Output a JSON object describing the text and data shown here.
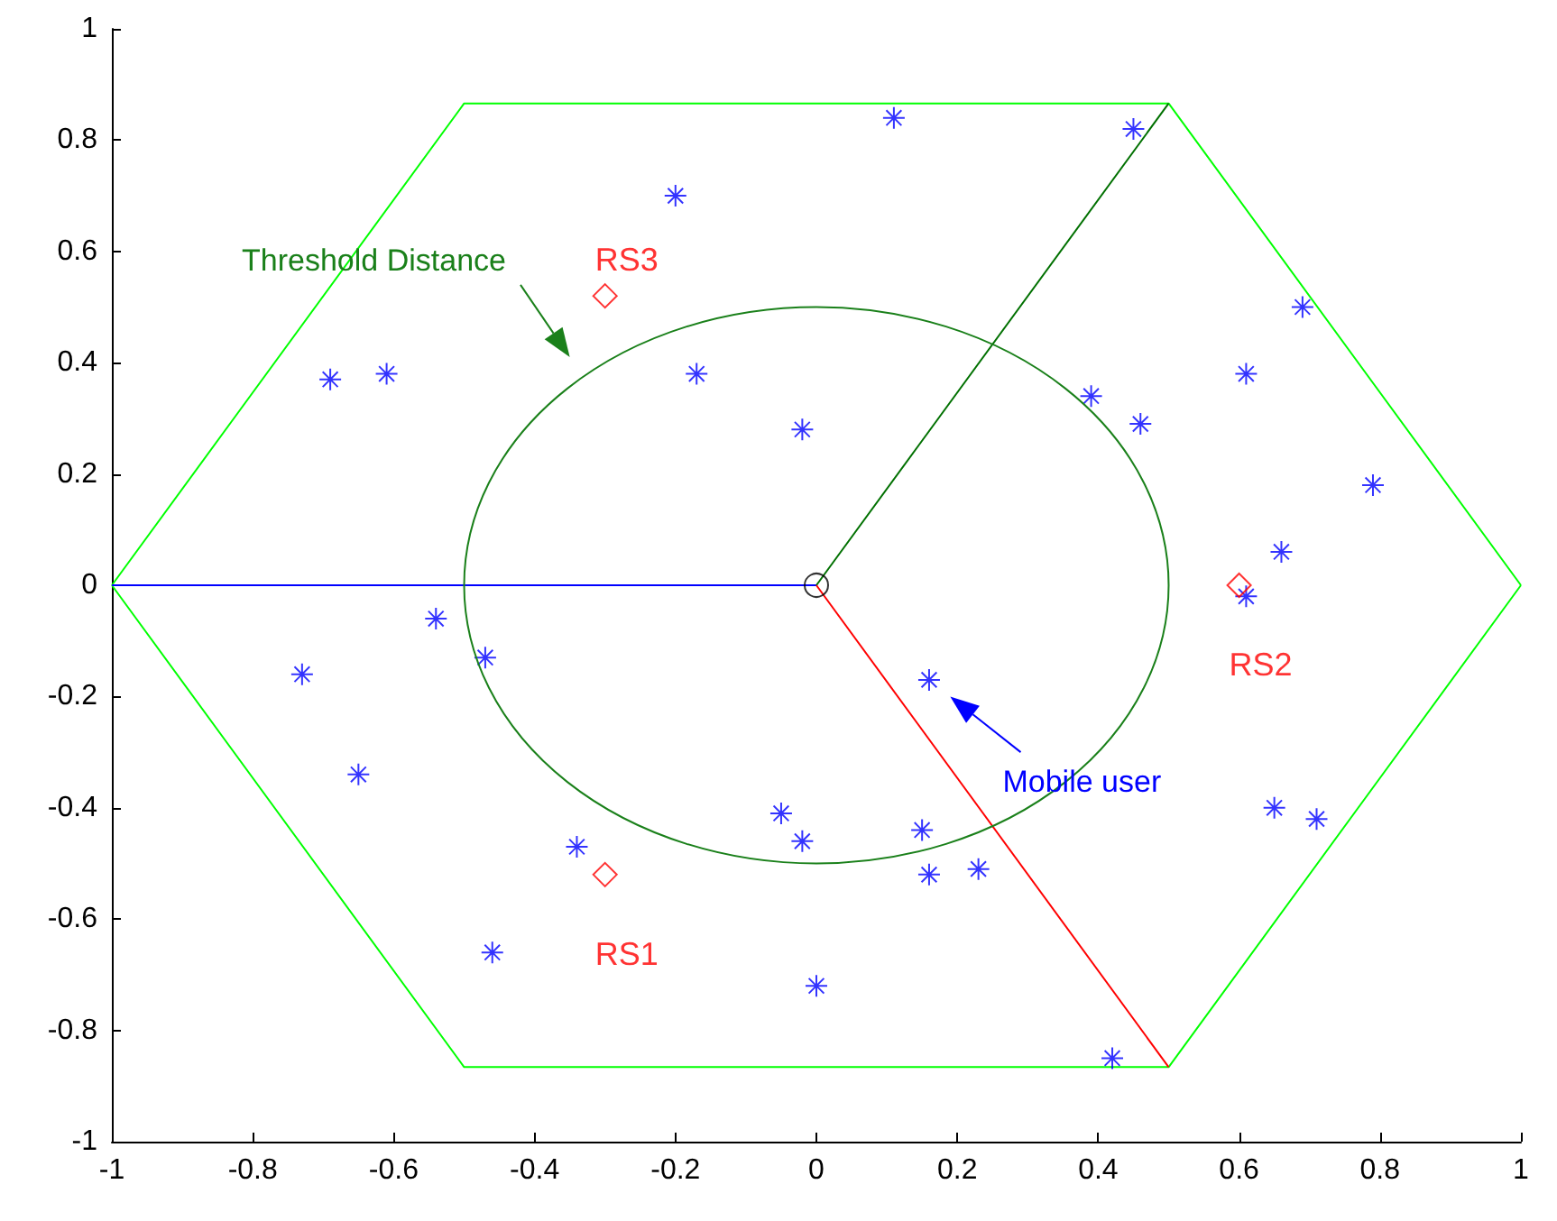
{
  "chart_data": {
    "type": "scatter",
    "xlim": [
      -1,
      1
    ],
    "xticks": [
      -1,
      -0.8,
      -0.6,
      -0.4,
      -0.2,
      0,
      0.2,
      0.4,
      0.6,
      0.8,
      1
    ],
    "ylim": [
      -1,
      1
    ],
    "yticks": [
      -1,
      -0.8,
      -0.6,
      -0.4,
      -0.2,
      0,
      0.2,
      0.4,
      0.6,
      0.8,
      1
    ],
    "series": [
      {
        "type": "line",
        "marker": "none",
        "color": "#00ff00",
        "x": [
          -1,
          -0.5,
          0.5,
          1
        ],
        "values": [
          0,
          0.866,
          0.866,
          0
        ]
      },
      {
        "type": "line",
        "marker": "none",
        "color": "#00ff00",
        "x": [
          -1,
          -0.5,
          0.5,
          1
        ],
        "values": [
          0,
          -0.866,
          -0.866,
          0
        ]
      },
      {
        "type": "line",
        "marker": "none",
        "color": "#0000ff",
        "x": [
          -1,
          0
        ],
        "values": [
          0,
          0
        ]
      },
      {
        "type": "line",
        "marker": "none",
        "color": "#007000",
        "x": [
          0,
          0.5
        ],
        "values": [
          0,
          0.866
        ]
      },
      {
        "type": "line",
        "marker": "none",
        "color": "#ff0000",
        "x": [
          0,
          0.5
        ],
        "values": [
          0,
          -0.866
        ]
      },
      {
        "marker": "cross",
        "color": "#0000ff",
        "x": [
          -0.69,
          -0.61,
          -0.2,
          -0.17,
          -0.02,
          0.11,
          0.45,
          0.39,
          0.46,
          0.61,
          0.69,
          0.79,
          0.66,
          0.61,
          0.16,
          -0.54,
          -0.47,
          -0.73,
          -0.65,
          -0.34,
          -0.05,
          -0.02,
          0.15,
          0.16,
          0.23,
          -0.46,
          0,
          0.42,
          0.65,
          0.71
        ],
        "values": [
          0.37,
          0.38,
          0.7,
          0.38,
          0.28,
          0.84,
          0.82,
          0.34,
          0.29,
          0.38,
          0.5,
          0.18,
          0.06,
          -0.02,
          -0.17,
          -0.06,
          -0.13,
          -0.16,
          -0.34,
          -0.47,
          -0.41,
          -0.46,
          -0.44,
          -0.52,
          -0.51,
          -0.66,
          -0.72,
          -0.85,
          -0.4,
          -0.42
        ]
      },
      {
        "marker": "circle",
        "color": "#000000",
        "x": [
          0
        ],
        "values": [
          0
        ]
      },
      {
        "marker": "diamond",
        "color": "#ff0000",
        "name": "RS1",
        "x": [
          -0.3
        ],
        "values": [
          -0.52
        ]
      },
      {
        "marker": "diamond",
        "color": "#ff0000",
        "name": "RS2",
        "x": [
          0.6
        ],
        "values": [
          0
        ]
      },
      {
        "marker": "diamond",
        "color": "#ff0000",
        "name": "RS3",
        "x": [
          -0.3
        ],
        "values": [
          0.52
        ]
      }
    ],
    "annotations": [
      "Threshold Distance",
      "Mobile user"
    ]
  }
}
